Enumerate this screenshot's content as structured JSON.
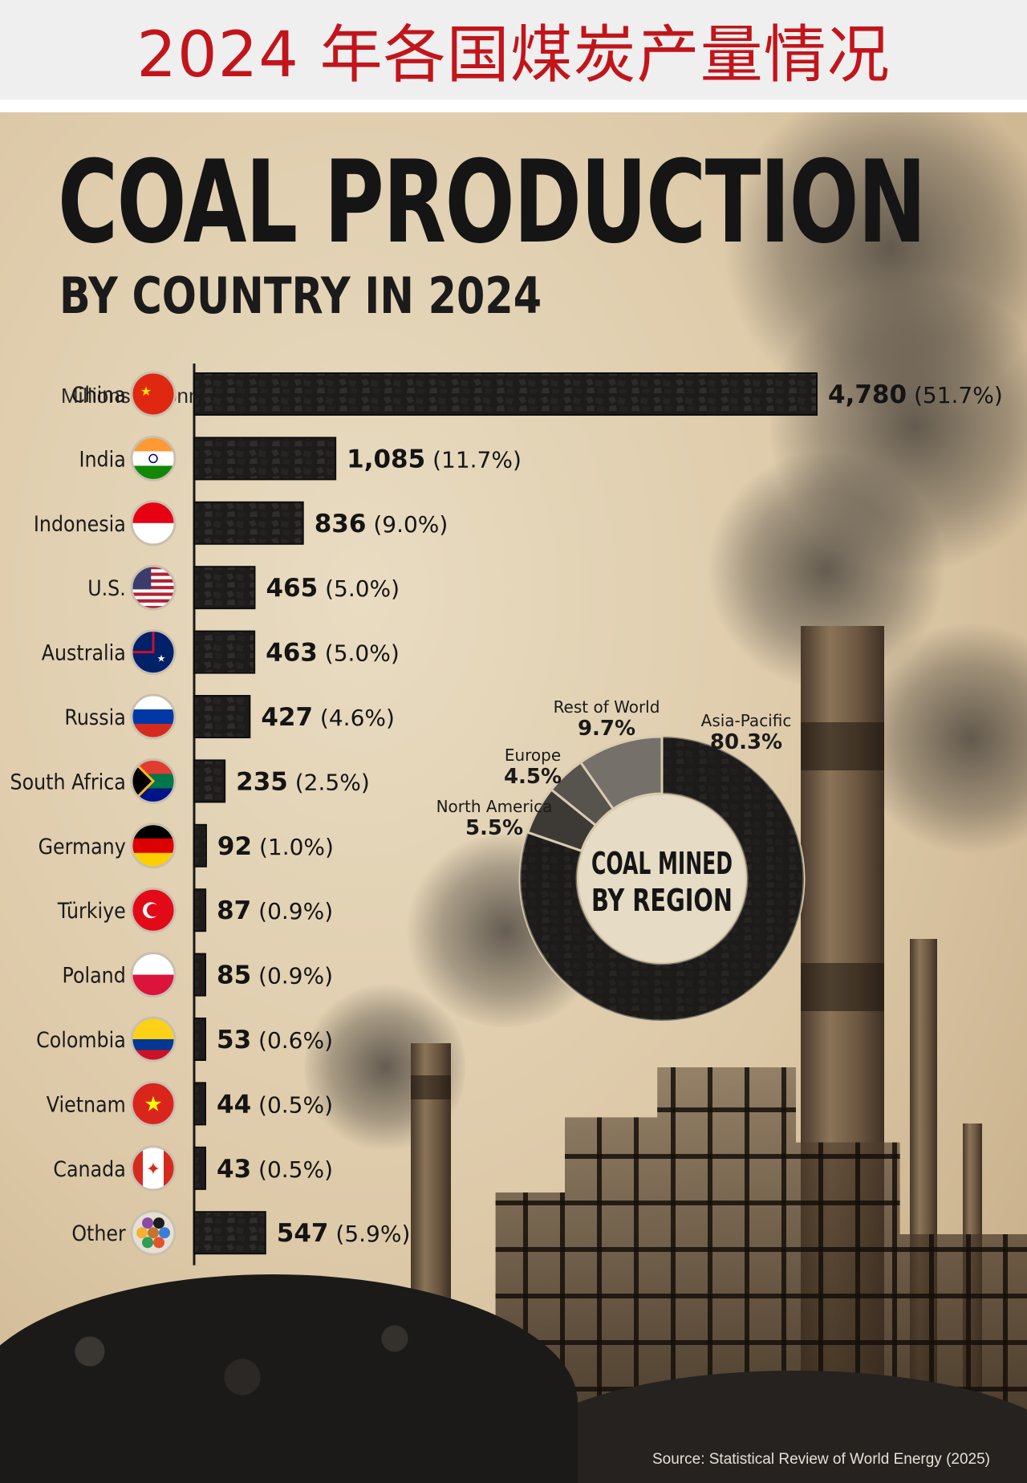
{
  "banner": {
    "title": "2024 年各国煤炭产量情况"
  },
  "poster": {
    "title": "COAL PRODUCTION",
    "subtitle": "BY COUNTRY IN 2024",
    "unit": "Millions of tonnes of coal",
    "source": "Source: Statistical Review of World Energy (2025)"
  },
  "colors": {
    "banner_title": "#c2151b",
    "bar": "#1c1b1a",
    "text": "#161616",
    "background": "#dcc8a6"
  },
  "chart_data": [
    {
      "type": "bar",
      "orientation": "horizontal",
      "title": "COAL PRODUCTION",
      "subtitle": "BY COUNTRY IN 2024",
      "unit": "Millions of tonnes of coal",
      "categories": [
        "China",
        "India",
        "Indonesia",
        "U.S.",
        "Australia",
        "Russia",
        "South Africa",
        "Germany",
        "Türkiye",
        "Poland",
        "Colombia",
        "Vietnam",
        "Canada",
        "Other"
      ],
      "values": [
        4780,
        1085,
        836,
        465,
        463,
        427,
        235,
        92,
        87,
        85,
        53,
        44,
        43,
        547
      ],
      "value_labels": [
        "4,780",
        "1,085",
        "836",
        "465",
        "463",
        "427",
        "235",
        "92",
        "87",
        "85",
        "53",
        "44",
        "43",
        "547"
      ],
      "shares": [
        "(51.7%)",
        "(11.7%)",
        "(9.0%)",
        "(5.0%)",
        "(5.0%)",
        "(4.6%)",
        "(2.5%)",
        "(1.0%)",
        "(0.9%)",
        "(0.9%)",
        "(0.6%)",
        "(0.5%)",
        "(0.5%)",
        "(5.9%)"
      ],
      "flag_icons": [
        "flag-china-icon",
        "flag-india-icon",
        "flag-indonesia-icon",
        "flag-us-icon",
        "flag-australia-icon",
        "flag-russia-icon",
        "flag-south-africa-icon",
        "flag-germany-icon",
        "flag-turkiye-icon",
        "flag-poland-icon",
        "flag-colombia-icon",
        "flag-vietnam-icon",
        "flag-canada-icon",
        "world-people-icon"
      ],
      "xlim": [
        0,
        4780
      ],
      "grid": false,
      "legend": "none"
    },
    {
      "type": "pie",
      "style": "donut",
      "title": "COAL MINED BY REGION",
      "title_lines": [
        "COAL MINED",
        "BY REGION"
      ],
      "slices": [
        {
          "label": "Asia-Pacific",
          "value": 80.3,
          "value_label": "80.3%",
          "color": "#1a1918"
        },
        {
          "label": "North America",
          "value": 5.5,
          "value_label": "5.5%",
          "color": "#3d3a36"
        },
        {
          "label": "Europe",
          "value": 4.5,
          "value_label": "4.5%",
          "color": "#57534d"
        },
        {
          "label": "Rest of World",
          "value": 9.7,
          "value_label": "9.7%",
          "color": "#76706a"
        }
      ]
    }
  ]
}
